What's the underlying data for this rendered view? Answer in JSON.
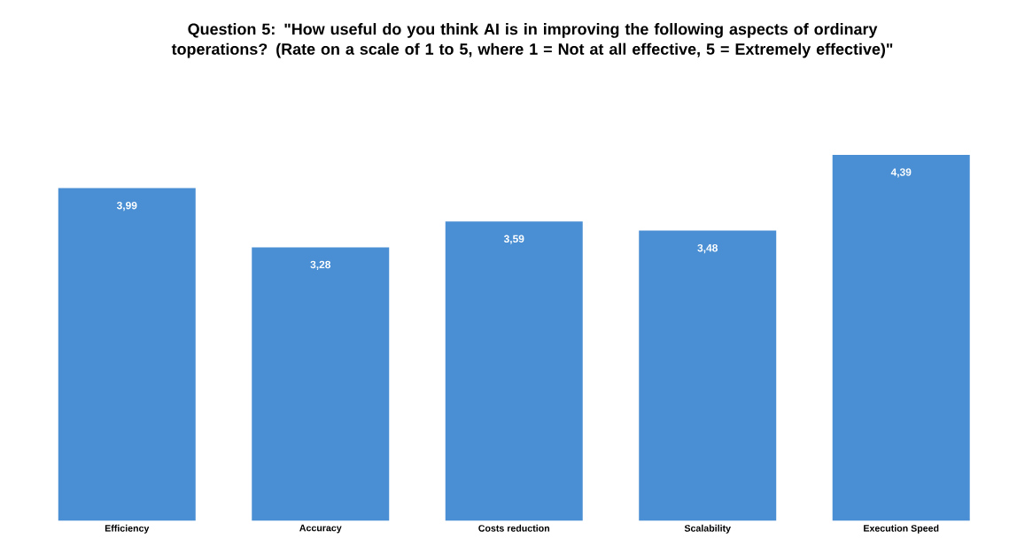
{
  "chart_data": {
    "type": "bar",
    "title": "Question 5: \"How useful do you think AI is in improving the following aspects of ordinary toperations? (Rate on a scale of 1 to 5, where 1 = Not at all effective, 5 = Extremely effective)\"",
    "categories": [
      "Efficiency",
      "Accuracy",
      "Costs reduction",
      "Scalability",
      "Execution Speed"
    ],
    "values": [
      3.99,
      3.28,
      3.59,
      3.48,
      4.39
    ],
    "value_labels": [
      "3,99",
      "3,28",
      "3,59",
      "3,48",
      "4,39"
    ],
    "color": "#4a8fd3"
  }
}
